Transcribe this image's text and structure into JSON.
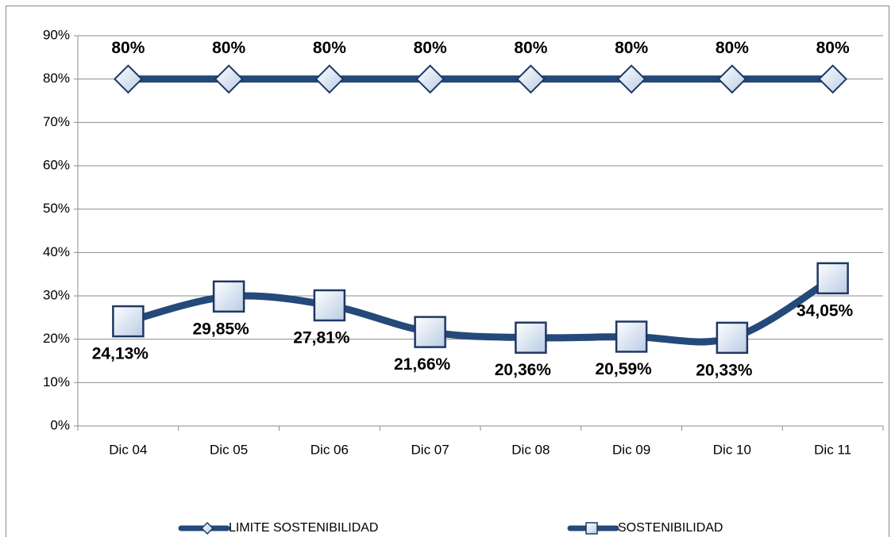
{
  "chart_data": {
    "type": "line",
    "categories": [
      "Dic 04",
      "Dic 05",
      "Dic 06",
      "Dic 07",
      "Dic 08",
      "Dic 09",
      "Dic 10",
      "Dic 11"
    ],
    "series": [
      {
        "name": "LIMITE SOSTENIBILIDAD",
        "color": "#24497a",
        "marker": "diamond",
        "values": [
          80,
          80,
          80,
          80,
          80,
          80,
          80,
          80
        ],
        "value_labels": [
          "80%",
          "80%",
          "80%",
          "80%",
          "80%",
          "80%",
          "80%",
          "80%"
        ]
      },
      {
        "name": "SOSTENIBILIDAD",
        "color": "#24497a",
        "marker": "square",
        "values": [
          24.13,
          29.85,
          27.81,
          21.66,
          20.36,
          20.59,
          20.33,
          34.05
        ],
        "value_labels": [
          "24,13%",
          "29,85%",
          "27,81%",
          "21,66%",
          "20,36%",
          "20,59%",
          "20,33%",
          "34,05%"
        ]
      }
    ],
    "ylim": [
      0,
      90
    ],
    "yticks": [
      {
        "value": 0,
        "label": "0%"
      },
      {
        "value": 10,
        "label": "10%"
      },
      {
        "value": 20,
        "label": "20%"
      },
      {
        "value": 30,
        "label": "30%"
      },
      {
        "value": 40,
        "label": "40%"
      },
      {
        "value": 50,
        "label": "50%"
      },
      {
        "value": 60,
        "label": "60%"
      },
      {
        "value": 70,
        "label": "70%"
      },
      {
        "value": 80,
        "label": "80%"
      },
      {
        "value": 90,
        "label": "90%"
      }
    ],
    "grid": true,
    "legend": "bottom"
  }
}
